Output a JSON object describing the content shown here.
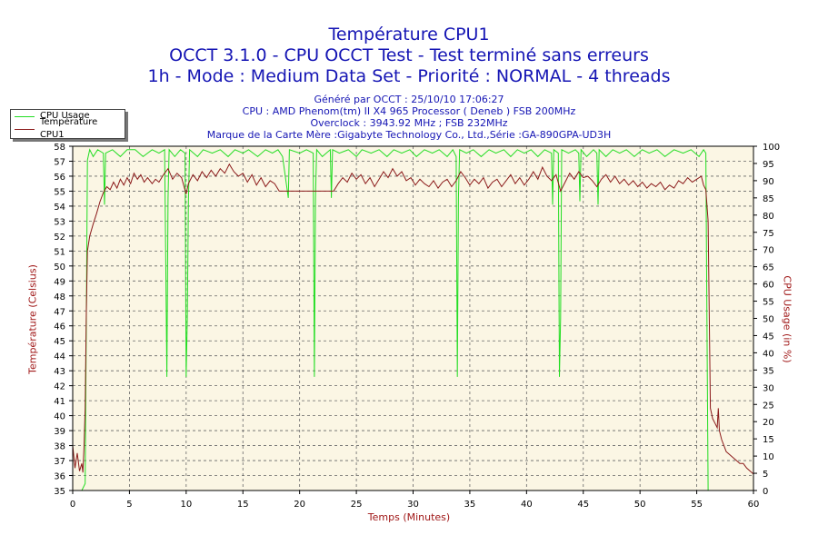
{
  "header": {
    "title": "Température CPU1",
    "line2": "OCCT 3.1.0 - CPU OCCT Test - Test terminé sans erreurs",
    "line3": "1h - Mode : Medium Data Set - Priorité : NORMAL - 4 threads",
    "info": [
      "Généré par OCCT : 25/10/10 17:06:27",
      "CPU : AMD Phenom(tm) II X4 965 Processor ( Deneb ) FSB 200MHz",
      "Overclock : 3943.92 MHz ; FSB 232MHz",
      "Marque de la Carte Mère :Gigabyte Technology Co., Ltd.,Série :GA-890GPA-UD3H"
    ]
  },
  "chart_data": {
    "type": "line",
    "xlabel": "Temps (Minutes)",
    "ylabel_left": "Température (Celsius)",
    "ylabel_right": "CPU Usage (in %)",
    "xlim": [
      0,
      60
    ],
    "ylim_left": [
      35,
      58
    ],
    "ylim_right": [
      0,
      100
    ],
    "x_ticks": [
      0,
      5,
      10,
      15,
      20,
      25,
      30,
      35,
      40,
      45,
      50,
      55,
      60
    ],
    "y_left_ticks": [
      35,
      36,
      37,
      38,
      39,
      40,
      41,
      42,
      43,
      44,
      45,
      46,
      47,
      48,
      49,
      50,
      51,
      52,
      53,
      54,
      55,
      56,
      57,
      58
    ],
    "y_right_ticks": [
      0,
      5,
      10,
      15,
      20,
      25,
      30,
      35,
      40,
      45,
      50,
      55,
      60,
      65,
      70,
      75,
      80,
      85,
      90,
      95,
      100
    ],
    "grid": true,
    "legend_position": "top-left",
    "series": [
      {
        "name": "CPU Usage",
        "axis": "right",
        "color": "#22dd22",
        "points": [
          [
            0,
            0
          ],
          [
            0.3,
            0
          ],
          [
            0.8,
            0
          ],
          [
            1.1,
            2
          ],
          [
            1.3,
            96
          ],
          [
            1.5,
            99
          ],
          [
            1.8,
            97
          ],
          [
            2.2,
            99
          ],
          [
            2.7,
            98
          ],
          [
            2.8,
            83
          ],
          [
            2.9,
            98
          ],
          [
            3.5,
            99
          ],
          [
            4.2,
            97
          ],
          [
            4.8,
            99
          ],
          [
            5.5,
            99
          ],
          [
            6.2,
            97
          ],
          [
            7,
            99
          ],
          [
            7.6,
            98
          ],
          [
            8.1,
            99
          ],
          [
            8.2,
            66
          ],
          [
            8.3,
            33
          ],
          [
            8.4,
            85
          ],
          [
            8.5,
            99
          ],
          [
            9,
            97
          ],
          [
            9.5,
            99
          ],
          [
            9.9,
            98
          ],
          [
            10.0,
            33
          ],
          [
            10.1,
            50
          ],
          [
            10.2,
            84
          ],
          [
            10.3,
            99
          ],
          [
            11,
            97
          ],
          [
            11.5,
            99
          ],
          [
            12.3,
            98
          ],
          [
            13,
            99
          ],
          [
            13.7,
            97
          ],
          [
            14.3,
            99
          ],
          [
            15,
            98
          ],
          [
            15.5,
            99
          ],
          [
            16.3,
            97
          ],
          [
            17,
            99
          ],
          [
            17.6,
            98
          ],
          [
            18.1,
            99
          ],
          [
            18.5,
            97
          ],
          [
            19.0,
            85
          ],
          [
            19.1,
            99
          ],
          [
            20,
            98
          ],
          [
            20.6,
            99
          ],
          [
            21.2,
            98
          ],
          [
            21.3,
            33
          ],
          [
            21.4,
            85
          ],
          [
            21.5,
            99
          ],
          [
            22,
            97
          ],
          [
            22.7,
            99
          ],
          [
            22.8,
            85
          ],
          [
            22.9,
            99
          ],
          [
            23.5,
            98
          ],
          [
            24.3,
            99
          ],
          [
            25,
            97
          ],
          [
            25.5,
            99
          ],
          [
            26.3,
            98
          ],
          [
            27,
            99
          ],
          [
            27.7,
            97
          ],
          [
            28.3,
            99
          ],
          [
            29,
            98
          ],
          [
            29.7,
            99
          ],
          [
            30.3,
            97
          ],
          [
            31,
            99
          ],
          [
            31.7,
            98
          ],
          [
            32.3,
            99
          ],
          [
            33,
            97
          ],
          [
            33.5,
            99
          ],
          [
            33.8,
            97
          ],
          [
            33.9,
            33
          ],
          [
            34.0,
            85
          ],
          [
            34.1,
            99
          ],
          [
            34.7,
            98
          ],
          [
            35.3,
            99
          ],
          [
            36,
            97
          ],
          [
            36.7,
            99
          ],
          [
            37.3,
            98
          ],
          [
            38,
            99
          ],
          [
            38.6,
            97
          ],
          [
            39.2,
            99
          ],
          [
            39.8,
            98
          ],
          [
            40.4,
            99
          ],
          [
            41,
            97
          ],
          [
            41.6,
            99
          ],
          [
            42.2,
            98
          ],
          [
            42.3,
            83
          ],
          [
            42.4,
            99
          ],
          [
            42.8,
            98
          ],
          [
            42.9,
            33
          ],
          [
            43.0,
            50
          ],
          [
            43.1,
            99
          ],
          [
            43.7,
            98
          ],
          [
            44.3,
            99
          ],
          [
            44.6,
            98
          ],
          [
            44.7,
            84
          ],
          [
            44.8,
            99
          ],
          [
            45.3,
            97
          ],
          [
            45.9,
            99
          ],
          [
            46.2,
            98
          ],
          [
            46.3,
            83
          ],
          [
            46.4,
            99
          ],
          [
            47,
            97
          ],
          [
            47.6,
            99
          ],
          [
            48.2,
            98
          ],
          [
            48.8,
            99
          ],
          [
            49.5,
            97
          ],
          [
            50.2,
            99
          ],
          [
            50.8,
            98
          ],
          [
            51.5,
            99
          ],
          [
            52.2,
            97
          ],
          [
            53,
            99
          ],
          [
            53.8,
            98
          ],
          [
            54.5,
            99
          ],
          [
            55.2,
            97
          ],
          [
            55.6,
            99
          ],
          [
            55.8,
            98
          ],
          [
            55.9,
            50
          ],
          [
            56.0,
            0
          ],
          [
            60,
            0
          ]
        ]
      },
      {
        "name": "Température CPU1",
        "axis": "left",
        "color": "#8b1a1a",
        "points": [
          [
            0,
            38
          ],
          [
            0.2,
            36.5
          ],
          [
            0.4,
            37.5
          ],
          [
            0.6,
            36.3
          ],
          [
            0.8,
            36.8
          ],
          [
            0.9,
            36.2
          ],
          [
            1.0,
            38
          ],
          [
            1.1,
            40.5
          ],
          [
            1.2,
            47
          ],
          [
            1.3,
            51
          ],
          [
            1.5,
            52
          ],
          [
            1.8,
            52.8
          ],
          [
            2.1,
            53.5
          ],
          [
            2.4,
            54.3
          ],
          [
            2.7,
            54.9
          ],
          [
            3.0,
            55.3
          ],
          [
            3.3,
            55.1
          ],
          [
            3.6,
            55.6
          ],
          [
            3.9,
            55.2
          ],
          [
            4.2,
            55.8
          ],
          [
            4.5,
            55.4
          ],
          [
            4.8,
            55.9
          ],
          [
            5.1,
            55.5
          ],
          [
            5.4,
            56.2
          ],
          [
            5.7,
            55.8
          ],
          [
            6.0,
            56.1
          ],
          [
            6.3,
            55.6
          ],
          [
            6.6,
            55.9
          ],
          [
            7.0,
            55.5
          ],
          [
            7.3,
            55.8
          ],
          [
            7.6,
            55.6
          ],
          [
            8.0,
            56.1
          ],
          [
            8.4,
            56.5
          ],
          [
            8.8,
            55.8
          ],
          [
            9.2,
            56.2
          ],
          [
            9.6,
            55.9
          ],
          [
            10.0,
            54.8
          ],
          [
            10.2,
            55.5
          ],
          [
            10.6,
            56.1
          ],
          [
            11.0,
            55.7
          ],
          [
            11.4,
            56.3
          ],
          [
            11.8,
            55.9
          ],
          [
            12.2,
            56.4
          ],
          [
            12.6,
            56.0
          ],
          [
            13.0,
            56.5
          ],
          [
            13.4,
            56.2
          ],
          [
            13.8,
            56.8
          ],
          [
            14.2,
            56.3
          ],
          [
            14.6,
            56.0
          ],
          [
            15.0,
            56.2
          ],
          [
            15.4,
            55.6
          ],
          [
            15.8,
            56.1
          ],
          [
            16.2,
            55.4
          ],
          [
            16.6,
            55.9
          ],
          [
            17.0,
            55.3
          ],
          [
            17.4,
            55.7
          ],
          [
            17.8,
            55.5
          ],
          [
            18.2,
            55.0
          ],
          [
            19.0,
            55.0
          ],
          [
            20.0,
            55.0
          ],
          [
            21.0,
            55.0
          ],
          [
            22.0,
            55.0
          ],
          [
            23.0,
            55.0
          ],
          [
            23.4,
            55.5
          ],
          [
            23.8,
            55.9
          ],
          [
            24.2,
            55.6
          ],
          [
            24.6,
            56.2
          ],
          [
            25.0,
            55.8
          ],
          [
            25.4,
            56.1
          ],
          [
            25.8,
            55.5
          ],
          [
            26.2,
            55.9
          ],
          [
            26.6,
            55.3
          ],
          [
            27.0,
            55.8
          ],
          [
            27.4,
            56.3
          ],
          [
            27.8,
            55.9
          ],
          [
            28.2,
            56.5
          ],
          [
            28.6,
            56.0
          ],
          [
            29.0,
            56.3
          ],
          [
            29.4,
            55.7
          ],
          [
            29.8,
            55.9
          ],
          [
            30.2,
            55.4
          ],
          [
            30.6,
            55.8
          ],
          [
            31.0,
            55.5
          ],
          [
            31.4,
            55.3
          ],
          [
            31.8,
            55.7
          ],
          [
            32.2,
            55.2
          ],
          [
            32.6,
            55.6
          ],
          [
            33.0,
            55.8
          ],
          [
            33.4,
            55.3
          ],
          [
            33.8,
            55.7
          ],
          [
            34.2,
            56.3
          ],
          [
            34.6,
            55.9
          ],
          [
            35.0,
            55.4
          ],
          [
            35.4,
            55.8
          ],
          [
            35.8,
            55.5
          ],
          [
            36.2,
            55.9
          ],
          [
            36.6,
            55.2
          ],
          [
            37.0,
            55.6
          ],
          [
            37.4,
            55.8
          ],
          [
            37.8,
            55.3
          ],
          [
            38.2,
            55.7
          ],
          [
            38.6,
            56.1
          ],
          [
            39.0,
            55.5
          ],
          [
            39.4,
            55.9
          ],
          [
            39.8,
            55.4
          ],
          [
            40.2,
            55.8
          ],
          [
            40.6,
            56.3
          ],
          [
            41.0,
            55.8
          ],
          [
            41.4,
            56.6
          ],
          [
            41.8,
            56.0
          ],
          [
            42.2,
            55.7
          ],
          [
            42.6,
            56.1
          ],
          [
            43.0,
            55.0
          ],
          [
            43.4,
            55.6
          ],
          [
            43.8,
            56.2
          ],
          [
            44.2,
            55.8
          ],
          [
            44.6,
            56.3
          ],
          [
            45.0,
            55.9
          ],
          [
            45.4,
            56.0
          ],
          [
            45.8,
            55.7
          ],
          [
            46.2,
            55.3
          ],
          [
            46.6,
            55.8
          ],
          [
            47.0,
            56.1
          ],
          [
            47.4,
            55.6
          ],
          [
            47.8,
            56.0
          ],
          [
            48.2,
            55.5
          ],
          [
            48.6,
            55.8
          ],
          [
            49.0,
            55.4
          ],
          [
            49.4,
            55.7
          ],
          [
            49.8,
            55.3
          ],
          [
            50.2,
            55.6
          ],
          [
            50.6,
            55.2
          ],
          [
            51.0,
            55.5
          ],
          [
            51.4,
            55.3
          ],
          [
            51.8,
            55.6
          ],
          [
            52.2,
            55.1
          ],
          [
            52.6,
            55.4
          ],
          [
            53.0,
            55.2
          ],
          [
            53.4,
            55.7
          ],
          [
            53.8,
            55.5
          ],
          [
            54.2,
            55.9
          ],
          [
            54.6,
            55.6
          ],
          [
            55.0,
            55.8
          ],
          [
            55.4,
            56.0
          ],
          [
            55.6,
            55.4
          ],
          [
            55.8,
            55.1
          ],
          [
            56.0,
            53
          ],
          [
            56.1,
            47
          ],
          [
            56.2,
            40.5
          ],
          [
            56.4,
            39.8
          ],
          [
            56.6,
            39.5
          ],
          [
            56.8,
            39.2
          ],
          [
            56.9,
            40.5
          ],
          [
            57.0,
            39
          ],
          [
            57.2,
            38.4
          ],
          [
            57.4,
            38.0
          ],
          [
            57.6,
            37.6
          ],
          [
            57.9,
            37.4
          ],
          [
            58.2,
            37.2
          ],
          [
            58.5,
            37.0
          ],
          [
            58.8,
            36.8
          ],
          [
            59.1,
            36.8
          ],
          [
            59.4,
            36.5
          ],
          [
            59.7,
            36.3
          ],
          [
            60,
            36.1
          ]
        ]
      }
    ]
  }
}
